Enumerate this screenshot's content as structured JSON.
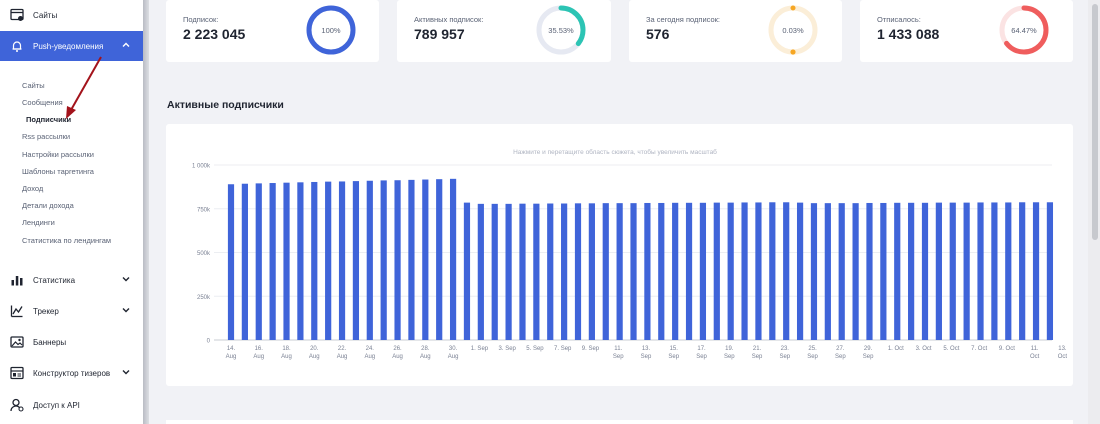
{
  "sidebar": {
    "top_item": {
      "label": "Сайты",
      "icon": "sites-icon"
    },
    "active_item": {
      "label": "Push-уведомления",
      "icon": "bell-icon"
    },
    "sub_items": [
      {
        "label": "Сайты"
      },
      {
        "label": "Сообщения"
      },
      {
        "label": "Подписчики"
      },
      {
        "label": "Rss рассылки"
      },
      {
        "label": "Настройки рассылки"
      },
      {
        "label": "Шаблоны таргетинга"
      },
      {
        "label": "Доход"
      },
      {
        "label": "Детали дохода"
      },
      {
        "label": "Лендинги"
      },
      {
        "label": "Статистика по лендингам"
      }
    ],
    "items": [
      {
        "label": "Статистика",
        "icon": "stats-icon",
        "has_chevron": true
      },
      {
        "label": "Трекер",
        "icon": "tracker-icon",
        "has_chevron": true
      },
      {
        "label": "Баннеры",
        "icon": "image-icon",
        "has_chevron": false
      },
      {
        "label": "Конструктор тизеров",
        "icon": "teaser-icon",
        "has_chevron": true
      },
      {
        "label": "Доступ к API",
        "icon": "api-user-icon",
        "has_chevron": false
      }
    ]
  },
  "stats": [
    {
      "label": "Подписок:",
      "value": "2 223 045",
      "percent_label": "100%",
      "percent": 100,
      "color": "#3f64d9"
    },
    {
      "label": "Активных подписок:",
      "value": "789 957",
      "percent_label": "35.53%",
      "percent": 35.53,
      "color": "#2cc4b4"
    },
    {
      "label": "За сегодня подписок:",
      "value": "576",
      "percent_label": "0.03%",
      "percent": 0.03,
      "color": "#f6a623"
    },
    {
      "label": "Отписалось:",
      "value": "1 433 088",
      "percent_label": "64.47%",
      "percent": 64.47,
      "color": "#ef5d5d"
    }
  ],
  "section_title": "Активные подписчики",
  "chart_data": {
    "type": "bar",
    "title": "",
    "hint": "Нажмите и перетащите область сюжета, чтобы увеличить масштаб",
    "y_ticks": [
      "0",
      "250k",
      "500k",
      "750k",
      "1 000k"
    ],
    "ylim": [
      0,
      1000000
    ],
    "bar_color": "#3f64d9",
    "values": [
      890000,
      893000,
      895000,
      897000,
      899000,
      901000,
      903000,
      905000,
      906000,
      908000,
      910000,
      912000,
      913000,
      915000,
      917000,
      919000,
      921000,
      785000,
      778000,
      778000,
      778000,
      779000,
      779000,
      780000,
      780000,
      781000,
      781000,
      782000,
      782000,
      782000,
      783000,
      783000,
      784000,
      784000,
      784000,
      785000,
      785000,
      786000,
      786000,
      787000,
      787000,
      785000,
      782000,
      782000,
      782000,
      782000,
      783000,
      783000,
      784000,
      784000,
      784000,
      785000,
      785000,
      785000,
      786000,
      786000,
      786000,
      787000,
      787000,
      787000
    ],
    "x_labels": [
      {
        "bar": 0,
        "text": "14.\nAug"
      },
      {
        "bar": 2,
        "text": "16.\nAug"
      },
      {
        "bar": 4,
        "text": "18.\nAug"
      },
      {
        "bar": 6,
        "text": "20.\nAug"
      },
      {
        "bar": 8,
        "text": "22.\nAug"
      },
      {
        "bar": 10,
        "text": "24.\nAug"
      },
      {
        "bar": 12,
        "text": "26.\nAug"
      },
      {
        "bar": 14,
        "text": "28.\nAug"
      },
      {
        "bar": 16,
        "text": "30.\nAug"
      },
      {
        "bar": 17.9,
        "text": "1. Sep"
      },
      {
        "bar": 19.9,
        "text": "3. Sep"
      },
      {
        "bar": 21.9,
        "text": "5. Sep"
      },
      {
        "bar": 23.9,
        "text": "7. Sep"
      },
      {
        "bar": 25.9,
        "text": "9. Sep"
      },
      {
        "bar": 27.9,
        "text": "11.\nSep"
      },
      {
        "bar": 29.9,
        "text": "13.\nSep"
      },
      {
        "bar": 31.9,
        "text": "15.\nSep"
      },
      {
        "bar": 33.9,
        "text": "17.\nSep"
      },
      {
        "bar": 35.9,
        "text": "19.\nSep"
      },
      {
        "bar": 37.9,
        "text": "21.\nSep"
      },
      {
        "bar": 39.9,
        "text": "23.\nSep"
      },
      {
        "bar": 41.9,
        "text": "25.\nSep"
      },
      {
        "bar": 43.9,
        "text": "27.\nSep"
      },
      {
        "bar": 45.9,
        "text": "29.\nSep"
      },
      {
        "bar": 47.9,
        "text": "1. Oct"
      },
      {
        "bar": 49.9,
        "text": "3. Oct"
      },
      {
        "bar": 51.9,
        "text": "5. Oct"
      },
      {
        "bar": 53.9,
        "text": "7. Oct"
      },
      {
        "bar": 55.9,
        "text": "9. Oct"
      },
      {
        "bar": 57.9,
        "text": "11.\nOct"
      },
      {
        "bar": 59.9,
        "text": "13.\nOct"
      }
    ]
  }
}
